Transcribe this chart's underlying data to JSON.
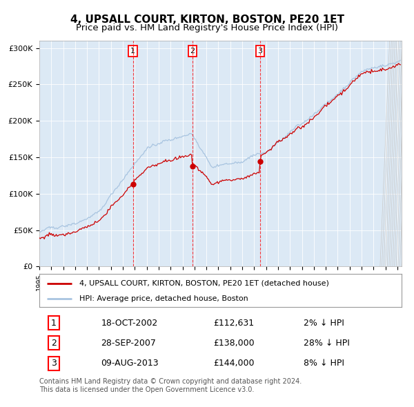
{
  "title": "4, UPSALL COURT, KIRTON, BOSTON, PE20 1ET",
  "subtitle": "Price paid vs. HM Land Registry's House Price Index (HPI)",
  "title_fontsize": 11,
  "subtitle_fontsize": 9.5,
  "plot_bg_color": "#dce9f5",
  "hpi_color": "#a8c4e0",
  "price_color": "#cc0000",
  "sale_marker_color": "#cc0000",
  "sale1_date_idx": 94,
  "sale1_value": 112631,
  "sale1_label": "18-OCT-2002",
  "sale1_price_str": "£112,631",
  "sale1_hpi_str": "2% ↓ HPI",
  "sale2_date_idx": 154,
  "sale2_value": 138000,
  "sale2_label": "28-SEP-2007",
  "sale2_price_str": "£138,000",
  "sale2_hpi_str": "28% ↓ HPI",
  "sale3_date_idx": 222,
  "sale3_value": 144000,
  "sale3_label": "09-AUG-2013",
  "sale3_price_str": "£144,000",
  "sale3_hpi_str": "8% ↓ HPI",
  "ylim_min": 0,
  "ylim_max": 310000,
  "legend_line1": "4, UPSALL COURT, KIRTON, BOSTON, PE20 1ET (detached house)",
  "legend_line2": "HPI: Average price, detached house, Boston",
  "footnote1": "Contains HM Land Registry data © Crown copyright and database right 2024.",
  "footnote2": "This data is licensed under the Open Government Licence v3.0."
}
